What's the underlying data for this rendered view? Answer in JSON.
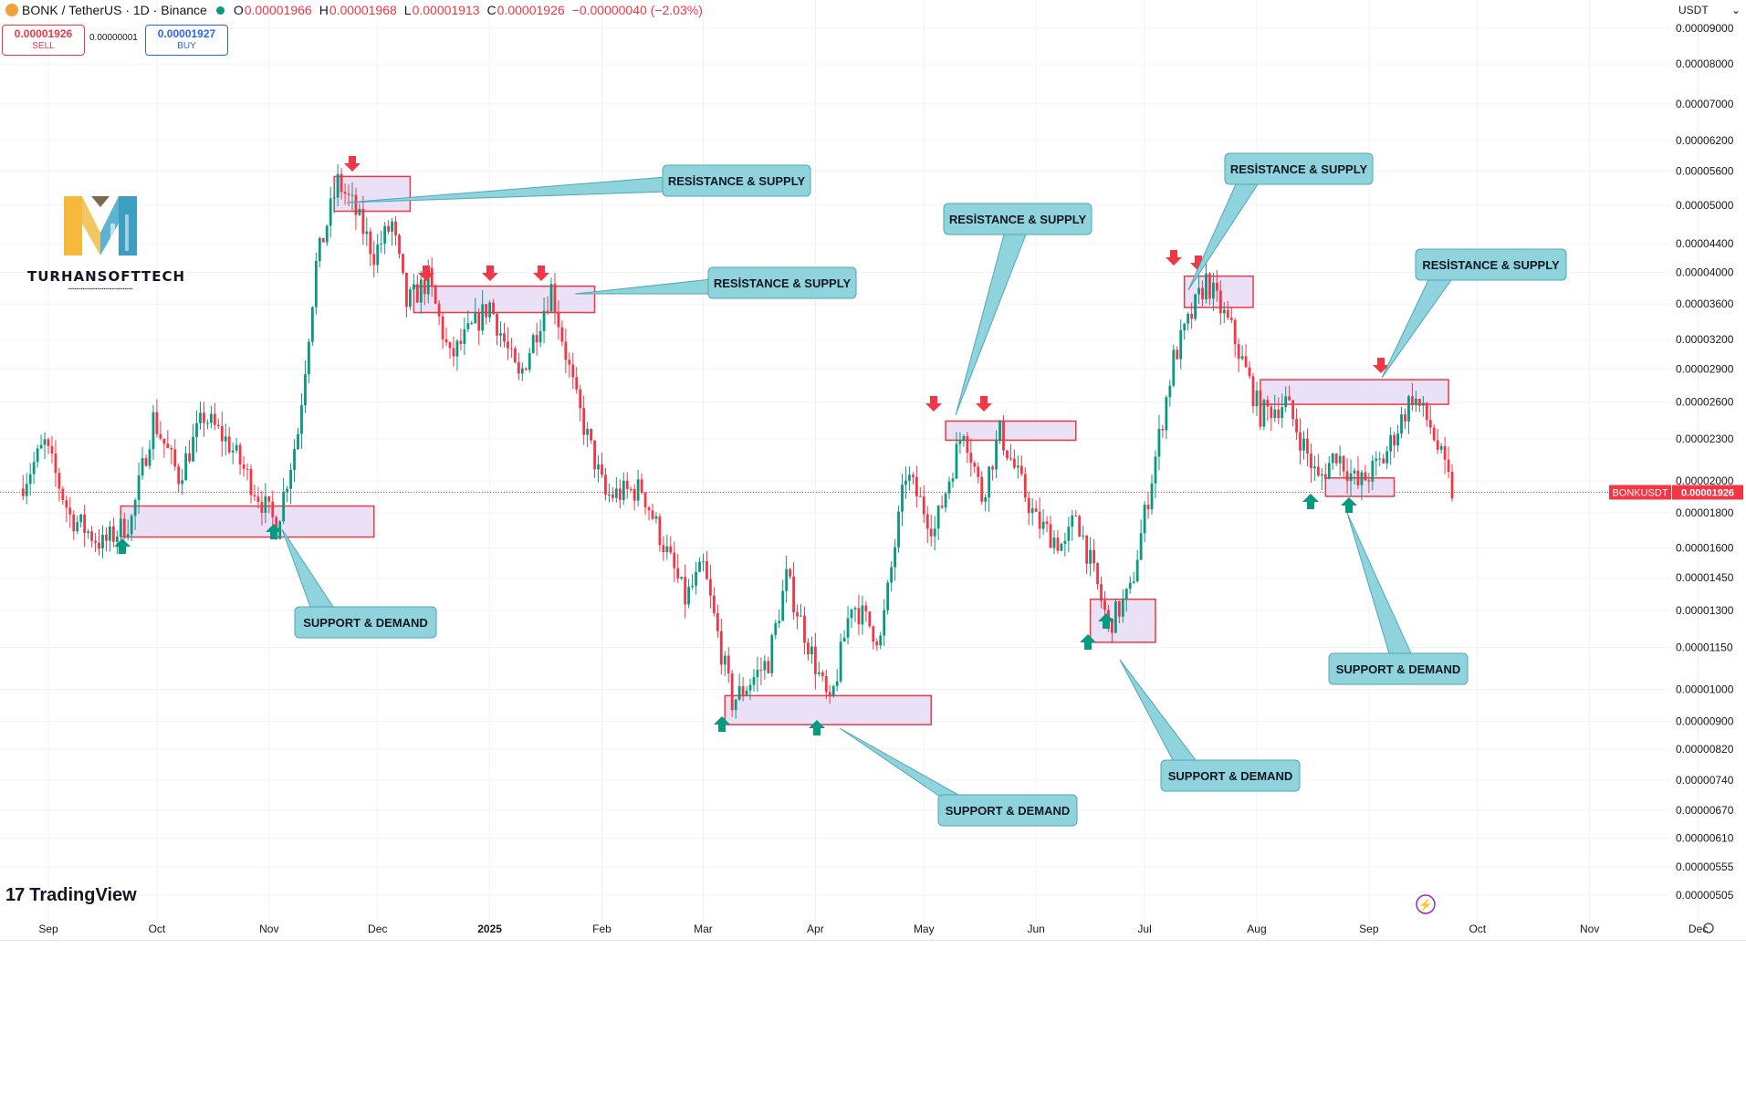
{
  "header": {
    "symbol": "BONK / TetherUS · 1D · Binance",
    "open_label": "O",
    "open": "0.00001966",
    "high_label": "H",
    "high": "0.00001968",
    "low_label": "L",
    "low": "0.00001913",
    "close_label": "C",
    "close": "0.00001926",
    "change": "−0.00000040 (−2.03%)"
  },
  "order": {
    "sell_price": "0.00001926",
    "sell_label": "SELL",
    "spread": "0.00000001",
    "buy_price": "0.00001927",
    "buy_label": "BUY"
  },
  "currency": "USDT",
  "currency_icon": "chevron-down-icon",
  "brand": {
    "name": "TURHANSOFTTECH",
    "colors": [
      "#f6b93b",
      "#3c9fc2",
      "#7c6fb0"
    ]
  },
  "price_tag": {
    "symbol": "BONKUSDT",
    "value": "0.00001926"
  },
  "y_ticks": [
    "0.00009000",
    "0.00008000",
    "0.00007000",
    "0.00006200",
    "0.00005600",
    "0.00005000",
    "0.00004400",
    "0.00004000",
    "0.00003600",
    "0.00003200",
    "0.00002900",
    "0.00002600",
    "0.00002300",
    "0.00002000",
    "0.00001800",
    "0.00001600",
    "0.00001450",
    "0.00001300",
    "0.00001150",
    "0.00001000",
    "0.00000900",
    "0.00000820",
    "0.00000740",
    "0.00000670",
    "0.00000610",
    "0.00000555",
    "0.00000505"
  ],
  "x_ticks": [
    "Sep",
    "Oct",
    "Nov",
    "Dec",
    "2025",
    "Feb",
    "Mar",
    "Apr",
    "May",
    "Jun",
    "Jul",
    "Aug",
    "Sep",
    "Oct",
    "Nov",
    "Dec"
  ],
  "logo_text": "TradingView",
  "colors": {
    "up": "#089981",
    "down": "#f23645",
    "zone_fill": "#e6dcf5",
    "callout": "#8fd3dd"
  },
  "chart_data": {
    "type": "candlestick",
    "title": "BONK / TetherUS · 1D · Binance",
    "scale": "log",
    "ylim": [
      5.05e-06,
      9e-05
    ],
    "x_range": [
      "2024-09",
      "2025-12"
    ],
    "last_price": 1.926e-05,
    "trend_segments": [
      {
        "date": "2024-08-25",
        "price": 1.95e-05
      },
      {
        "date": "2024-09-01",
        "price": 2.26e-05
      },
      {
        "date": "2024-09-08",
        "price": 1.78e-05
      },
      {
        "date": "2024-09-17",
        "price": 1.62e-05
      },
      {
        "date": "2024-09-25",
        "price": 1.76e-05
      },
      {
        "date": "2024-10-01",
        "price": 2.46e-05
      },
      {
        "date": "2024-10-08",
        "price": 2.03e-05
      },
      {
        "date": "2024-10-15",
        "price": 2.48e-05
      },
      {
        "date": "2024-10-22",
        "price": 2.26e-05
      },
      {
        "date": "2024-11-04",
        "price": 1.72e-05
      },
      {
        "date": "2024-11-10",
        "price": 2.36e-05
      },
      {
        "date": "2024-11-15",
        "price": 4.1e-05
      },
      {
        "date": "2024-11-21",
        "price": 5.4e-05
      },
      {
        "date": "2024-11-25",
        "price": 5e-05
      },
      {
        "date": "2024-12-01",
        "price": 4.25e-05
      },
      {
        "date": "2024-12-06",
        "price": 4.7e-05
      },
      {
        "date": "2024-12-10",
        "price": 3.6e-05
      },
      {
        "date": "2024-12-16",
        "price": 3.9e-05
      },
      {
        "date": "2024-12-22",
        "price": 3e-05
      },
      {
        "date": "2025-01-02",
        "price": 3.6e-05
      },
      {
        "date": "2025-01-10",
        "price": 2.8e-05
      },
      {
        "date": "2025-01-19",
        "price": 3.8e-05
      },
      {
        "date": "2025-01-26",
        "price": 2.6e-05
      },
      {
        "date": "2025-02-03",
        "price": 1.9e-05
      },
      {
        "date": "2025-02-13",
        "price": 1.95e-05
      },
      {
        "date": "2025-02-25",
        "price": 1.35e-05
      },
      {
        "date": "2025-03-02",
        "price": 1.5e-05
      },
      {
        "date": "2025-03-10",
        "price": 9.6e-06
      },
      {
        "date": "2025-03-20",
        "price": 1.1e-05
      },
      {
        "date": "2025-03-25",
        "price": 1.45e-05
      },
      {
        "date": "2025-04-06",
        "price": 9.4e-06
      },
      {
        "date": "2025-04-12",
        "price": 1.34e-05
      },
      {
        "date": "2025-04-20",
        "price": 1.18e-05
      },
      {
        "date": "2025-04-27",
        "price": 2.05e-05
      },
      {
        "date": "2025-05-05",
        "price": 1.7e-05
      },
      {
        "date": "2025-05-13",
        "price": 2.4e-05
      },
      {
        "date": "2025-05-18",
        "price": 1.9e-05
      },
      {
        "date": "2025-05-23",
        "price": 2.35e-05
      },
      {
        "date": "2025-06-02",
        "price": 1.75e-05
      },
      {
        "date": "2025-06-10",
        "price": 1.6e-05
      },
      {
        "date": "2025-06-13",
        "price": 1.8e-05
      },
      {
        "date": "2025-06-22",
        "price": 1.24e-05
      },
      {
        "date": "2025-06-28",
        "price": 1.38e-05
      },
      {
        "date": "2025-07-03",
        "price": 1.9e-05
      },
      {
        "date": "2025-07-10",
        "price": 3e-05
      },
      {
        "date": "2025-07-19",
        "price": 3.9e-05
      },
      {
        "date": "2025-07-26",
        "price": 3.3e-05
      },
      {
        "date": "2025-08-03",
        "price": 2.5e-05
      },
      {
        "date": "2025-08-10",
        "price": 2.6e-05
      },
      {
        "date": "2025-08-19",
        "price": 2e-05
      },
      {
        "date": "2025-08-24",
        "price": 2.2e-05
      },
      {
        "date": "2025-08-30",
        "price": 1.97e-05
      },
      {
        "date": "2025-09-06",
        "price": 2.15e-05
      },
      {
        "date": "2025-09-14",
        "price": 2.66e-05
      },
      {
        "date": "2025-09-19",
        "price": 2.4e-05
      },
      {
        "date": "2025-09-25",
        "price": 1.93e-05
      }
    ],
    "zones": [
      {
        "type": "support",
        "start": "2024-09-21",
        "end": "2024-11-30",
        "top": 1.84e-05,
        "bottom": 1.66e-05
      },
      {
        "type": "resistance",
        "start": "2024-11-19",
        "end": "2024-12-10",
        "top": 5.5e-05,
        "bottom": 4.9e-05
      },
      {
        "type": "resistance",
        "start": "2024-12-11",
        "end": "2025-01-30",
        "top": 3.82e-05,
        "bottom": 3.5e-05
      },
      {
        "type": "support",
        "start": "2025-03-07",
        "end": "2025-05-03",
        "top": 9.8e-06,
        "bottom": 8.9e-06
      },
      {
        "type": "resistance",
        "start": "2025-05-07",
        "end": "2025-06-12",
        "top": 2.44e-05,
        "bottom": 2.29e-05
      },
      {
        "type": "support",
        "start": "2025-06-16",
        "end": "2025-07-04",
        "top": 1.35e-05,
        "bottom": 1.17e-05
      },
      {
        "type": "resistance",
        "start": "2025-07-12",
        "end": "2025-07-31",
        "top": 3.95e-05,
        "bottom": 3.56e-05
      },
      {
        "type": "resistance",
        "start": "2025-08-02",
        "end": "2025-09-23",
        "top": 2.8e-05,
        "bottom": 2.58e-05
      },
      {
        "type": "support",
        "start": "2025-08-20",
        "end": "2025-09-08",
        "top": 2.02e-05,
        "bottom": 1.9e-05
      }
    ],
    "callouts": [
      {
        "text": "RESİSTANCE & SUPPLY"
      },
      {
        "text": "RESİSTANCE & SUPPLY"
      },
      {
        "text": "RESİSTANCE & SUPPLY"
      },
      {
        "text": "RESİSTANCE & SUPPLY"
      },
      {
        "text": "RESİSTANCE & SUPPLY"
      },
      {
        "text": "SUPPORT  & DEMAND"
      },
      {
        "text": "SUPPORT & DEMAND"
      },
      {
        "text": "SUPPORT & DEMAND"
      },
      {
        "text": "SUPPORT & DEMAND"
      }
    ]
  }
}
